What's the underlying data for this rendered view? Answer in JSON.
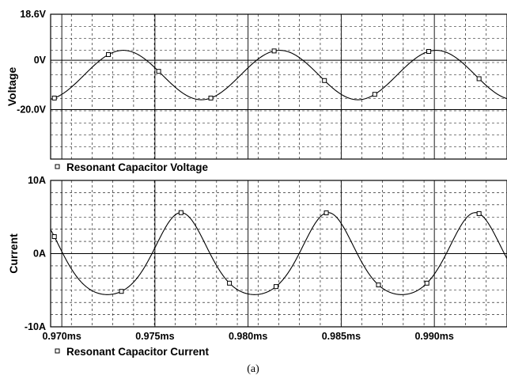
{
  "chart_data": [
    {
      "type": "line",
      "ylabel": "Voltage",
      "ytick_labels": [
        "18.6V",
        "0V",
        "-20.0V"
      ],
      "yticks": [
        18.6,
        0,
        -20.0
      ],
      "ylim": [
        -40,
        18.6
      ],
      "xlim": [
        0.9694,
        0.9939
      ],
      "series": [
        {
          "name": "Resonant Capacitor Voltage",
          "marker": "square-hollow",
          "period": 0.0084,
          "amplitude": 10.0,
          "offset": -6.0,
          "peak_x": 0.9733,
          "x": [
            0.9694,
            0.971,
            0.973,
            0.975,
            0.977,
            0.9794,
            0.9814,
            0.9834,
            0.9854,
            0.9878,
            0.9898,
            0.9918,
            0.9939
          ],
          "y": [
            -21.0,
            -13.0,
            4.0,
            -3.0,
            -19.0,
            -14.0,
            4.0,
            -6.0,
            -22.0,
            -14.0,
            4.0,
            -6.0,
            -22.0
          ]
        }
      ],
      "markers_x": [
        0.9696,
        0.9725,
        0.9752,
        0.978,
        0.9814,
        0.9841,
        0.9868,
        0.9897,
        0.9924
      ],
      "legend": "Resonant Capacitor Voltage",
      "legend_position": "bottom-left",
      "grid": true
    },
    {
      "type": "line",
      "ylabel": "Current",
      "ytick_labels": [
        "10A",
        "0A",
        "-10A"
      ],
      "yticks": [
        10,
        0,
        -10
      ],
      "ylim": [
        -10,
        10
      ],
      "xlim": [
        0.9694,
        0.9939
      ],
      "xtick_labels": [
        "0.970ms",
        "0.975ms",
        "0.980ms",
        "0.985ms",
        "0.990ms"
      ],
      "xticks": [
        0.97,
        0.975,
        0.98,
        0.985,
        0.99
      ],
      "series": [
        {
          "name": "Resonant Capacitor Current",
          "marker": "square-hollow",
          "period": 0.0079,
          "amplitude": 5.6,
          "offset": 0,
          "peak_x": 0.9764,
          "skew": 0.35,
          "x": [
            0.9694,
            0.9712,
            0.9735,
            0.9764,
            0.9792,
            0.9815,
            0.9843,
            0.9871,
            0.9894,
            0.9922,
            0.9939
          ],
          "y": [
            -3.5,
            -5.5,
            -1.0,
            5.5,
            -5.5,
            0.5,
            5.5,
            -5.2,
            1.5,
            5.5,
            -1.0
          ]
        }
      ],
      "markers_x": [
        0.9696,
        0.9732,
        0.9764,
        0.979,
        0.9815,
        0.9842,
        0.987,
        0.9896,
        0.9924
      ],
      "legend": "Resonant Capacitor Current",
      "legend_position": "bottom-left",
      "grid": true
    }
  ],
  "caption": "(a)"
}
